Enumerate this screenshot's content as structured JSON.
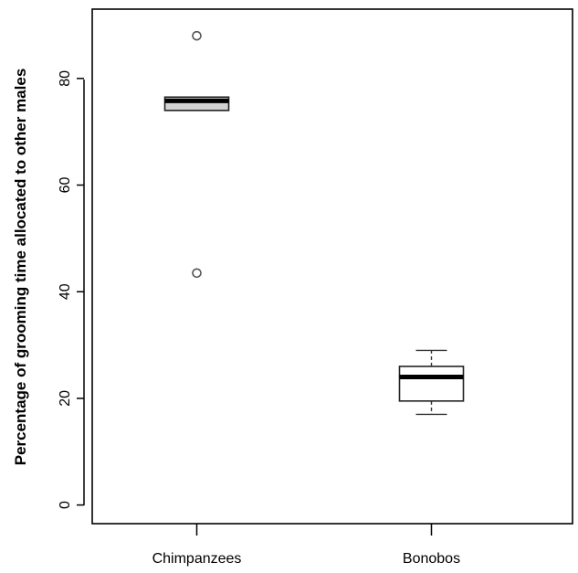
{
  "chart_data": {
    "type": "box",
    "title": "",
    "xlabel": "",
    "ylabel": "Percentage of grooming time allocated to other males",
    "ylim": [
      -3.5,
      93
    ],
    "yticks": [
      0,
      20,
      40,
      60,
      80
    ],
    "ytick_labels": [
      "0",
      "20",
      "40",
      "60",
      "80"
    ],
    "grid": false,
    "categories": [
      "Chimpanzees",
      "Bonobos"
    ],
    "boxes": [
      {
        "label": "Chimpanzees",
        "fill": "#d3d3d3",
        "whisker_low": 74,
        "q1": 74,
        "median": 75.8,
        "q3": 76.5,
        "whisker_high": 76.5,
        "outliers": [
          88,
          43.5
        ]
      },
      {
        "label": "Bonobos",
        "fill": "#ffffff",
        "whisker_low": 17,
        "q1": 19.5,
        "median": 24,
        "q3": 26,
        "whisker_high": 29,
        "outliers": []
      }
    ]
  }
}
